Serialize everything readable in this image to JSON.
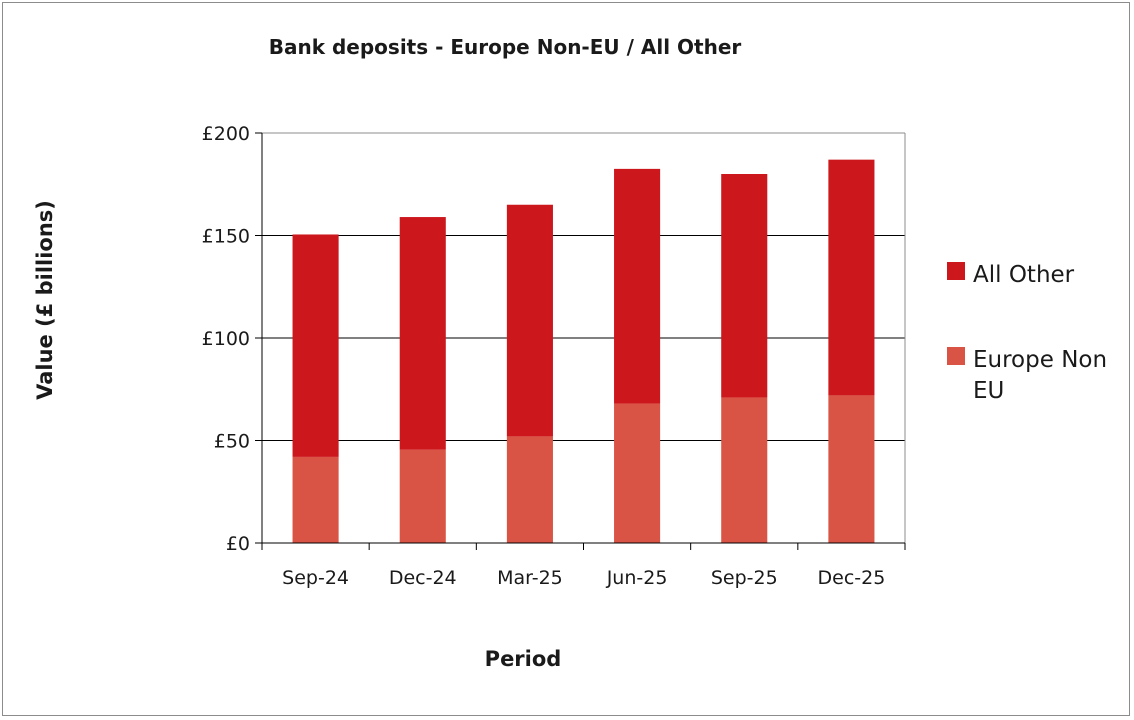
{
  "chart_data": {
    "type": "bar",
    "stacked": true,
    "title": "Bank deposits - Europe Non-EU / All Other",
    "xlabel": "Period",
    "ylabel": "Value (£ billions)",
    "categories": [
      "Sep-24",
      "Dec-24",
      "Mar-25",
      "Jun-25",
      "Sep-25",
      "Dec-25"
    ],
    "series": [
      {
        "name": "Europe Non EU",
        "color": "#d95444",
        "values": [
          42,
          45.5,
          52,
          68,
          71,
          72
        ]
      },
      {
        "name": "All Other",
        "color": "#cc171d",
        "values": [
          108.5,
          113.5,
          113,
          114.5,
          109,
          115
        ]
      }
    ],
    "ylim": [
      0,
      200
    ],
    "yticks": [
      0,
      50,
      100,
      150,
      200
    ],
    "ytick_labels": [
      "£0",
      "£50",
      "£100",
      "£150",
      "£200"
    ],
    "grid": true,
    "legend_position": "right",
    "legend": [
      {
        "label_lines": [
          "All Other"
        ],
        "color": "#cc171d"
      },
      {
        "label_lines": [
          "Europe Non",
          "EU"
        ],
        "color": "#d95444"
      }
    ]
  }
}
